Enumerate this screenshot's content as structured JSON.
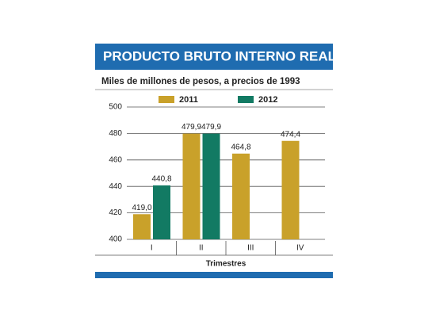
{
  "chart_data": {
    "type": "bar",
    "title": "PRODUCTO BRUTO INTERNO REAL",
    "subtitle": "Miles de millones de pesos, a precios de 1993",
    "x_label": "Trimestres",
    "categories": [
      "I",
      "II",
      "III",
      "IV"
    ],
    "series": [
      {
        "name": "2011",
        "color": "#c9a12a",
        "values": [
          419.0,
          479.9,
          464.8,
          474.4
        ],
        "value_labels": [
          "419,0",
          "479,9",
          "464,8",
          "474,4"
        ]
      },
      {
        "name": "2012",
        "color": "#127a63",
        "values": [
          440.8,
          479.9,
          null,
          null
        ],
        "value_labels": [
          "440,8",
          "479,9",
          null,
          null
        ]
      }
    ],
    "ylim": [
      400,
      500
    ],
    "yticks": [
      400,
      420,
      440,
      460,
      480,
      500
    ],
    "grid": true
  }
}
